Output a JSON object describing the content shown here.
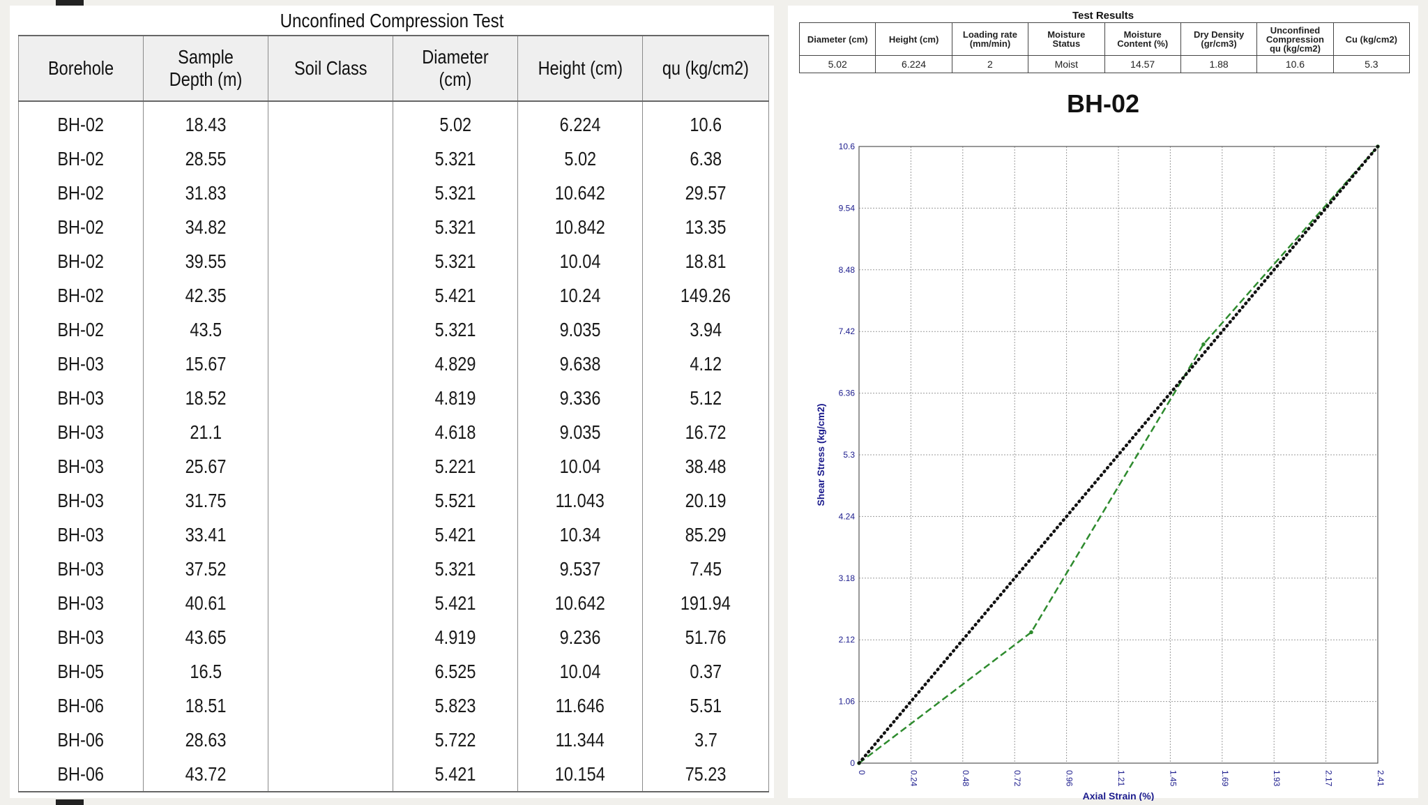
{
  "unconfined_table": {
    "title": "Unconfined Compression Test",
    "headers": [
      "Borehole",
      "Sample Depth (m)",
      "Soil Class",
      "Diameter (cm)",
      "Height (cm)",
      "qu (kg/cm2)"
    ],
    "rows": [
      [
        "BH-02",
        "18.43",
        "",
        "5.02",
        "6.224",
        "10.6"
      ],
      [
        "BH-02",
        "28.55",
        "",
        "5.321",
        "5.02",
        "6.38"
      ],
      [
        "BH-02",
        "31.83",
        "",
        "5.321",
        "10.642",
        "29.57"
      ],
      [
        "BH-02",
        "34.82",
        "",
        "5.321",
        "10.842",
        "13.35"
      ],
      [
        "BH-02",
        "39.55",
        "",
        "5.321",
        "10.04",
        "18.81"
      ],
      [
        "BH-02",
        "42.35",
        "",
        "5.421",
        "10.24",
        "149.26"
      ],
      [
        "BH-02",
        "43.5",
        "",
        "5.321",
        "9.035",
        "3.94"
      ],
      [
        "BH-03",
        "15.67",
        "",
        "4.829",
        "9.638",
        "4.12"
      ],
      [
        "BH-03",
        "18.52",
        "",
        "4.819",
        "9.336",
        "5.12"
      ],
      [
        "BH-03",
        "21.1",
        "",
        "4.618",
        "9.035",
        "16.72"
      ],
      [
        "BH-03",
        "25.67",
        "",
        "5.221",
        "10.04",
        "38.48"
      ],
      [
        "BH-03",
        "31.75",
        "",
        "5.521",
        "11.043",
        "20.19"
      ],
      [
        "BH-03",
        "33.41",
        "",
        "5.421",
        "10.34",
        "85.29"
      ],
      [
        "BH-03",
        "37.52",
        "",
        "5.321",
        "9.537",
        "7.45"
      ],
      [
        "BH-03",
        "40.61",
        "",
        "5.421",
        "10.642",
        "191.94"
      ],
      [
        "BH-03",
        "43.65",
        "",
        "4.919",
        "9.236",
        "51.76"
      ],
      [
        "BH-05",
        "16.5",
        "",
        "6.525",
        "10.04",
        "0.37"
      ],
      [
        "BH-06",
        "18.51",
        "",
        "5.823",
        "11.646",
        "5.51"
      ],
      [
        "BH-06",
        "28.63",
        "",
        "5.722",
        "11.344",
        "3.7"
      ],
      [
        "BH-06",
        "43.72",
        "",
        "5.421",
        "10.154",
        "75.23"
      ]
    ]
  },
  "test_results": {
    "title": "Test Results",
    "headers": [
      [
        "Diameter (cm)"
      ],
      [
        "Height (cm)"
      ],
      [
        "Loading rate",
        "(mm/min)"
      ],
      [
        "Moisture",
        "Status"
      ],
      [
        "Moisture",
        "Content (%)"
      ],
      [
        "Dry Density",
        "(gr/cm3)"
      ],
      [
        "Unconfined",
        "Compression",
        "qu (kg/cm2)"
      ],
      [
        "Cu  (kg/cm2)"
      ]
    ],
    "values": [
      "5.02",
      "6.224",
      "2",
      "Moist",
      "14.57",
      "1.88",
      "10.6",
      "5.3"
    ]
  },
  "chart_data": {
    "type": "line",
    "title": "BH-02",
    "xlabel": "Axial Strain (%)",
    "ylabel": "Shear Stress (kg/cm2)",
    "xlim": [
      0,
      2.41
    ],
    "ylim": [
      0,
      10.6
    ],
    "x_ticks": [
      "0",
      "0.24",
      "0.48",
      "0.72",
      "0.96",
      "1.21",
      "1.45",
      "1.69",
      "1.93",
      "2.17",
      "2.41"
    ],
    "y_ticks": [
      "0",
      "1.06",
      "2.12",
      "3.18",
      "4.24",
      "5.3",
      "6.36",
      "7.42",
      "8.48",
      "9.54",
      "10.6"
    ],
    "grid": true,
    "series": [
      {
        "color": "#2e8b2e",
        "style": "dashed",
        "points": [
          [
            0,
            0
          ],
          [
            0.8,
            2.25
          ],
          [
            1.6,
            7.2
          ],
          [
            2.41,
            10.6
          ]
        ]
      },
      {
        "color": "#111111",
        "style": "dotted",
        "points": [
          [
            0,
            0
          ],
          [
            2.41,
            10.6
          ]
        ]
      }
    ],
    "colors": {
      "axis_text": "#1a1a8c",
      "grid": "#9a9a9a"
    }
  }
}
